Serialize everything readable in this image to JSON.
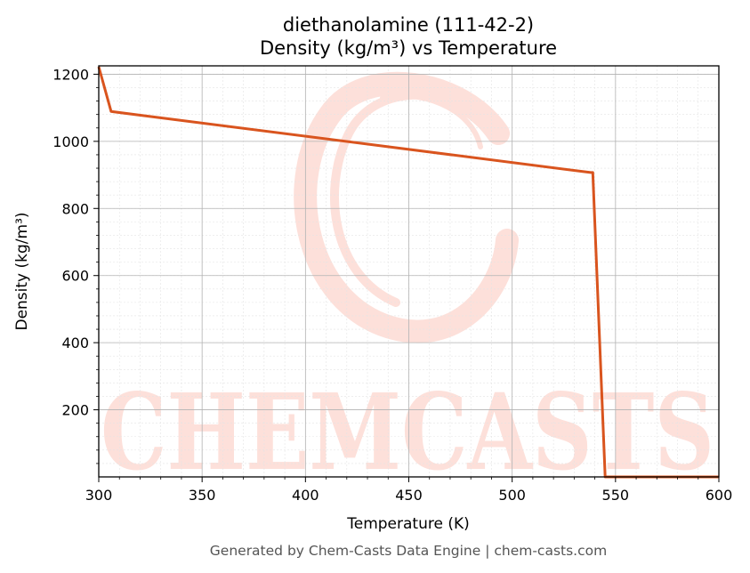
{
  "chart_data": {
    "type": "line",
    "title": "diethanolamine (111-42-2)",
    "subtitle": "Density (kg/m³) vs Temperature",
    "xlabel": "Temperature (K)",
    "ylabel": "Density (kg/m³)",
    "xlim": [
      300,
      600
    ],
    "ylim": [
      0,
      1225
    ],
    "xticks": [
      300,
      350,
      400,
      450,
      500,
      550,
      600
    ],
    "yticks": [
      200,
      400,
      600,
      800,
      1000,
      1200
    ],
    "grid": true,
    "series": [
      {
        "color": "#d9541e",
        "x": [
          300,
          306,
          538,
          539,
          545,
          600
        ],
        "y": [
          1222,
          1089,
          907,
          907,
          0,
          0
        ]
      }
    ],
    "watermark": "CHEMCASTS",
    "footer": "Generated by Chem-Casts Data Engine | chem-casts.com"
  }
}
